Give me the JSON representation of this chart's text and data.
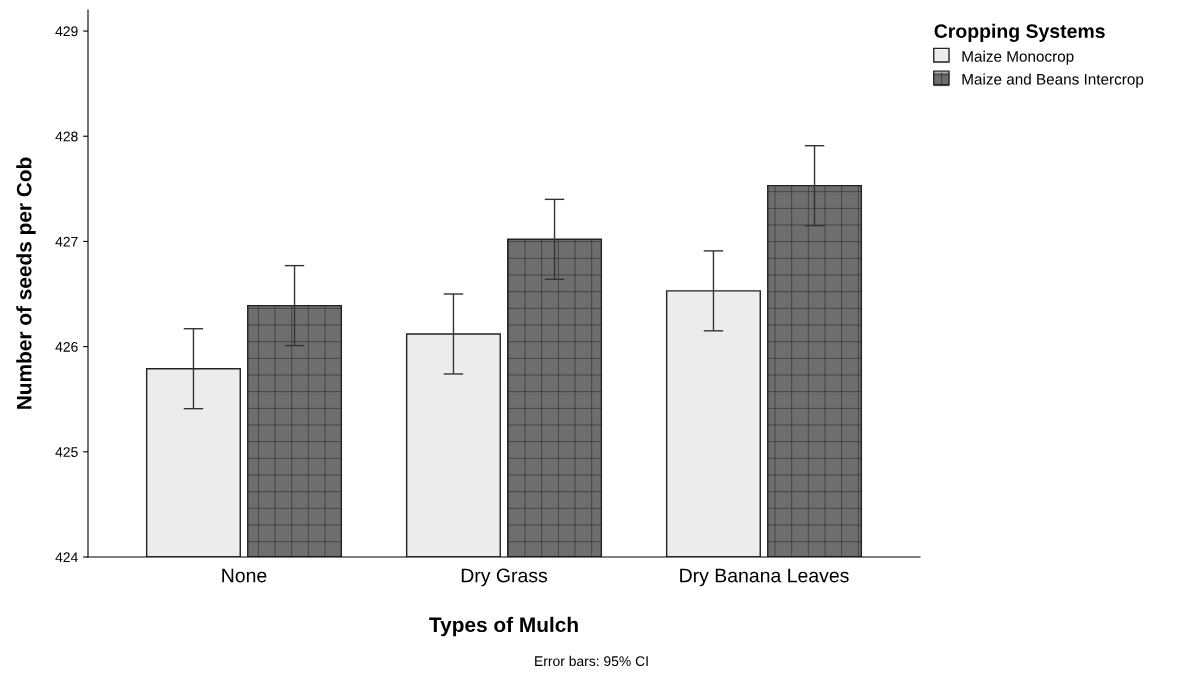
{
  "chart_data": {
    "type": "bar",
    "xlabel": "Types of Mulch",
    "ylabel": "Number of seeds per Cob",
    "legend_title": "Cropping Systems",
    "categories": [
      "None",
      "Dry Grass",
      "Dry Banana Leaves"
    ],
    "series": [
      {
        "name": "Maize Monocrop",
        "color": "#ececec",
        "values": [
          425.79,
          426.12,
          426.53
        ],
        "errors": [
          0.38,
          0.38,
          0.38
        ]
      },
      {
        "name": "Maize and Beans Intercrop",
        "color": "#6e6e6e",
        "values": [
          426.39,
          427.02,
          427.53
        ],
        "errors": [
          0.38,
          0.38,
          0.38
        ]
      }
    ],
    "ylim": [
      424,
      429.2
    ],
    "yticks": [
      424,
      425,
      426,
      427,
      428,
      429
    ],
    "grid": false,
    "legend": "top right",
    "annotations": [
      "Error bars: 95% CI"
    ]
  }
}
